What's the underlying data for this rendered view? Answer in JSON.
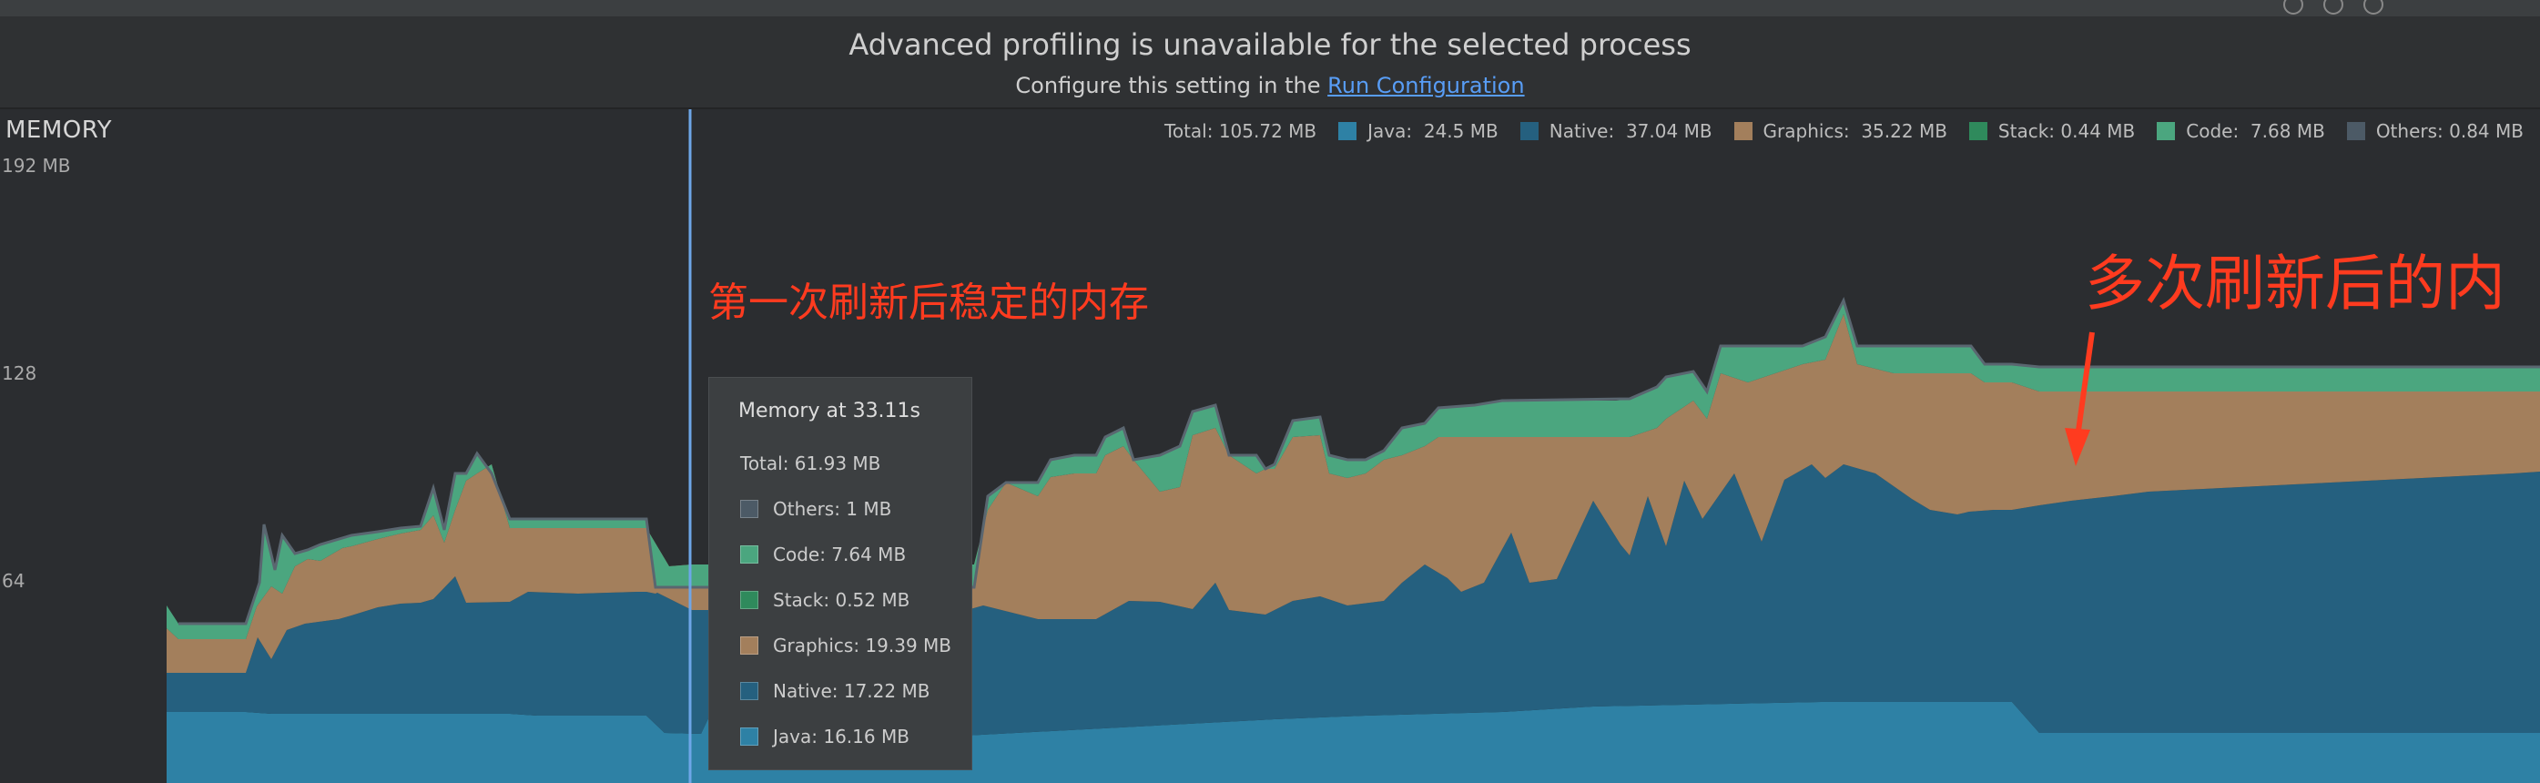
{
  "banner": {
    "title": "Advanced profiling is unavailable for the selected process",
    "subtitle_prefix": "Configure this setting in the ",
    "link": "Run Configuration"
  },
  "memory": {
    "title": "MEMORY",
    "y_labels": [
      "192 MB",
      "128",
      "64"
    ]
  },
  "legend": {
    "total": "Total: 105.72 MB",
    "items": [
      {
        "label": "Java:",
        "value": "  24.5 MB",
        "color": "#2e81a5"
      },
      {
        "label": "Native:",
        "value": "  37.04 MB",
        "color": "#25607f"
      },
      {
        "label": "Graphics:",
        "value": "  35.22 MB",
        "color": "#a37f5c"
      },
      {
        "label": "Stack:",
        "value": " 0.44 MB",
        "color": "#2f8a5c"
      },
      {
        "label": "Code:",
        "value": "  7.68 MB",
        "color": "#4ba67f"
      },
      {
        "label": "Others:",
        "value": " 0.84 MB",
        "color": "#4c5a66"
      }
    ]
  },
  "tooltip": {
    "title": "Memory at 33.11s",
    "total": "Total: 61.93 MB",
    "rows": [
      {
        "label": "Others: 1 MB",
        "color": "#4c5a66"
      },
      {
        "label": "Code: 7.64 MB",
        "color": "#4ba67f"
      },
      {
        "label": "Stack: 0.52 MB",
        "color": "#2f8a5c"
      },
      {
        "label": "Graphics: 19.39 MB",
        "color": "#a37f5c"
      },
      {
        "label": "Native: 17.22 MB",
        "color": "#25607f"
      },
      {
        "label": "Java: 16.16 MB",
        "color": "#2e81a5"
      }
    ]
  },
  "annotations": {
    "first": "第一次刷新后稳定的内存",
    "multi": "多次刷新后的内"
  },
  "colors": {
    "java": "#2e81a5",
    "native": "#25607f",
    "graphics": "#a37f5c",
    "stack": "#2f8a5c",
    "code": "#4ba67f",
    "others": "#5a6670",
    "cursor": "#6ea6e8",
    "annotation": "#ff3b1f"
  }
}
